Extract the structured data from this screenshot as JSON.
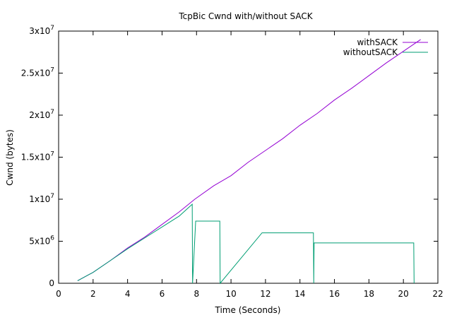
{
  "chart_data": {
    "type": "line",
    "title": "TcpBic Cwnd with/without SACK",
    "xlabel": "Time (Seconds)",
    "ylabel": "Cwnd (bytes)",
    "xlim": [
      0,
      22
    ],
    "ylim": [
      0,
      30000000
    ],
    "x_ticks": [
      {
        "value": 0,
        "label": "0"
      },
      {
        "value": 2,
        "label": "2"
      },
      {
        "value": 4,
        "label": "4"
      },
      {
        "value": 6,
        "label": "6"
      },
      {
        "value": 8,
        "label": "8"
      },
      {
        "value": 10,
        "label": "10"
      },
      {
        "value": 12,
        "label": "12"
      },
      {
        "value": 14,
        "label": "14"
      },
      {
        "value": 16,
        "label": "16"
      },
      {
        "value": 18,
        "label": "18"
      },
      {
        "value": 20,
        "label": "20"
      },
      {
        "value": 22,
        "label": "22"
      }
    ],
    "y_ticks": [
      {
        "value": 0,
        "mant": "0",
        "exp": ""
      },
      {
        "value": 5000000,
        "mant": "5x10",
        "exp": "6"
      },
      {
        "value": 10000000,
        "mant": "1x10",
        "exp": "7"
      },
      {
        "value": 15000000,
        "mant": "1.5x10",
        "exp": "7"
      },
      {
        "value": 20000000,
        "mant": "2x10",
        "exp": "7"
      },
      {
        "value": 25000000,
        "mant": "2.5x10",
        "exp": "7"
      },
      {
        "value": 30000000,
        "mant": "3x10",
        "exp": "7"
      }
    ],
    "grid": false,
    "legend_position": "top-right",
    "series": [
      {
        "name": "withSACK",
        "color": "#9400d3",
        "x": [
          1.1,
          2.0,
          3.0,
          4.0,
          5.0,
          6.0,
          7.0,
          7.9,
          9.0,
          10.0,
          11.0,
          12.0,
          13.0,
          14.0,
          15.0,
          16.0,
          17.0,
          18.0,
          19.0,
          20.0,
          21.0
        ],
        "y": [
          300000,
          1300000,
          2700000,
          4200000,
          5500000,
          7000000,
          8500000,
          10000000,
          11600000,
          12800000,
          14400000,
          15800000,
          17200000,
          18800000,
          20200000,
          21800000,
          23200000,
          24700000,
          26200000,
          27600000,
          29000000
        ]
      },
      {
        "name": "withoutSACK",
        "color": "#009e73",
        "x": [
          1.1,
          2.0,
          3.0,
          4.0,
          5.0,
          6.0,
          7.0,
          7.75,
          7.77,
          7.95,
          9.35,
          9.37,
          11.8,
          14.78,
          14.8,
          14.82,
          20.6,
          20.62
        ],
        "y": [
          300000,
          1300000,
          2700000,
          4100000,
          5400000,
          6700000,
          8000000,
          9400000,
          0,
          7400000,
          7400000,
          0,
          6000000,
          6000000,
          0,
          4800000,
          4800000,
          0
        ]
      }
    ]
  }
}
